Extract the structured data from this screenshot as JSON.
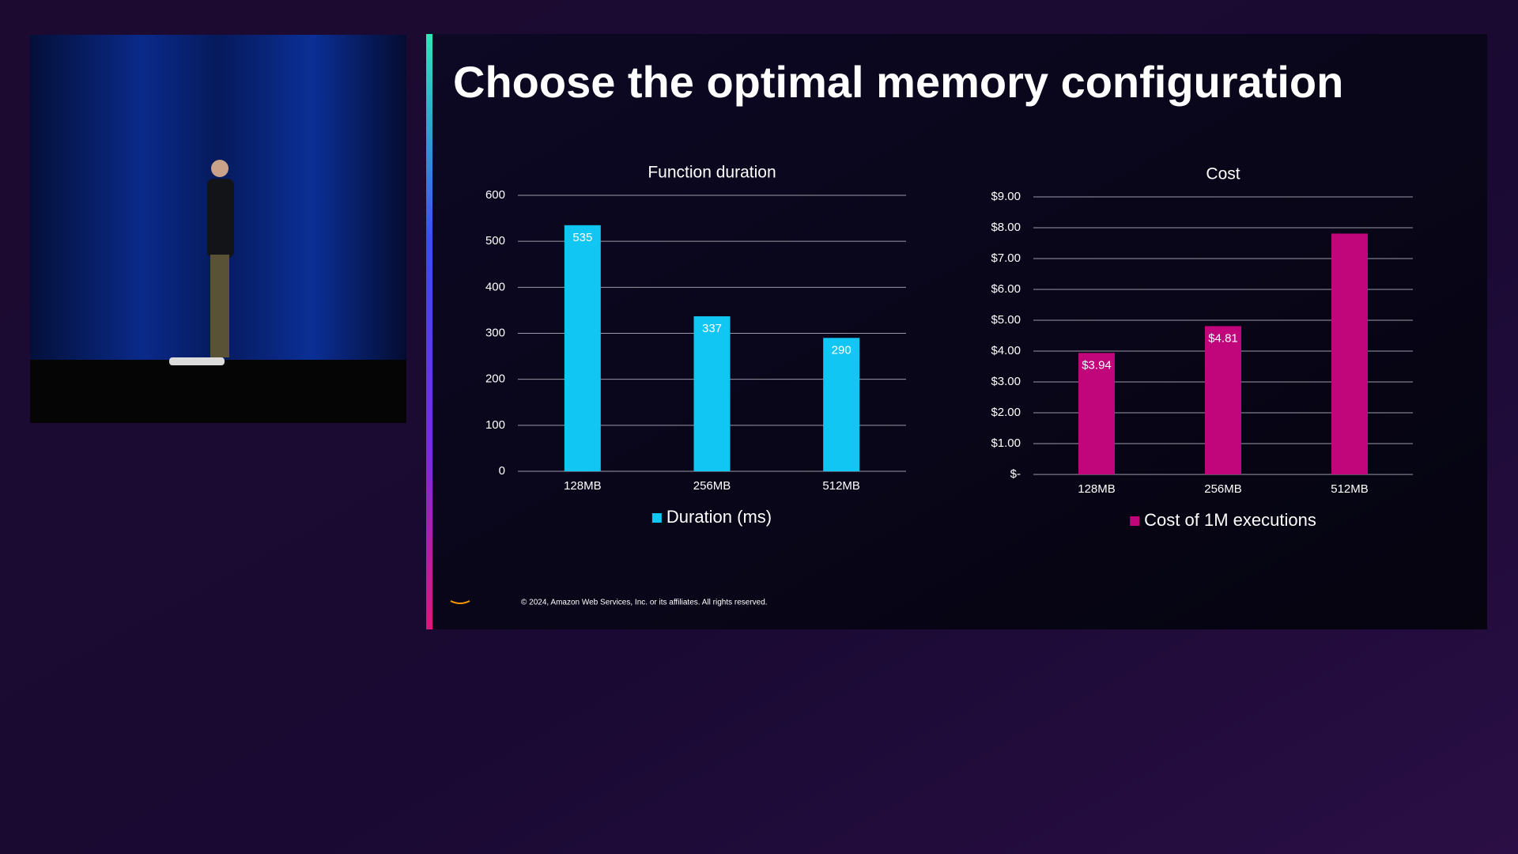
{
  "slide": {
    "title": "Choose the optimal memory configuration",
    "footer": "© 2024, Amazon Web Services, Inc. or its affiliates. All rights reserved."
  },
  "chart_data": [
    {
      "type": "bar",
      "title": "Function duration",
      "categories": [
        "128MB",
        "256MB",
        "512MB"
      ],
      "series": [
        {
          "name": "Duration (ms)",
          "color": "#12c6f3",
          "values": [
            535,
            337,
            290
          ]
        }
      ],
      "ylim": [
        0,
        600
      ],
      "yticks": [
        0,
        100,
        200,
        300,
        400,
        500,
        600
      ],
      "grid": true,
      "legend": "bottom"
    },
    {
      "type": "bar",
      "title": "Cost",
      "categories": [
        "128MB",
        "256MB",
        "512MB"
      ],
      "series": [
        {
          "name": "Cost of 1M executions",
          "color": "#c0067a",
          "values": [
            3.94,
            4.81,
            7.81
          ],
          "value_labels": [
            "$3.94",
            "$4.81",
            null
          ]
        }
      ],
      "ylim": [
        0,
        9
      ],
      "yticks": [
        {
          "value": 0,
          "label": "$-"
        },
        {
          "value": 1,
          "label": "$1.00"
        },
        {
          "value": 2,
          "label": "$2.00"
        },
        {
          "value": 3,
          "label": "$3.00"
        },
        {
          "value": 4,
          "label": "$4.00"
        },
        {
          "value": 5,
          "label": "$5.00"
        },
        {
          "value": 6,
          "label": "$6.00"
        },
        {
          "value": 7,
          "label": "$7.00"
        },
        {
          "value": 8,
          "label": "$8.00"
        },
        {
          "value": 9,
          "label": "$9.00"
        }
      ],
      "grid": true,
      "legend": "bottom"
    }
  ]
}
